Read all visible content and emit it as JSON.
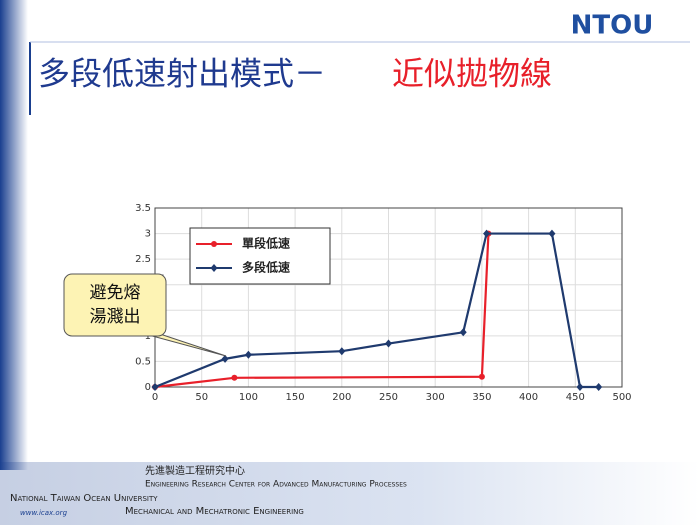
{
  "slide_title": {
    "part1": "多段低速射出模式－",
    "part2": "近似拋物線"
  },
  "logo": "NTOU",
  "chart_data": {
    "type": "line",
    "annotation": "避免熔 湯濺出",
    "xlim": [
      0,
      500
    ],
    "xticks": [
      0,
      50,
      100,
      150,
      200,
      250,
      300,
      350,
      400,
      450,
      500
    ],
    "ylim": [
      0,
      3.5
    ],
    "yticks": [
      0,
      0.5,
      1,
      1.5,
      2,
      2.5,
      3,
      3.5
    ],
    "grid": true,
    "legend": "upper left",
    "series": [
      {
        "name": "單段低速",
        "color": "#e8202a",
        "marker": "circle",
        "x": [
          0,
          85,
          350,
          357
        ],
        "values": [
          0,
          0.18,
          0.2,
          3
        ]
      },
      {
        "name": "多段低速",
        "color": "#1f3a6e",
        "marker": "diamond",
        "x": [
          0,
          75,
          100,
          200,
          250,
          330,
          355,
          425,
          455,
          475
        ],
        "values": [
          0,
          0.55,
          0.63,
          0.7,
          0.85,
          1.07,
          3,
          3,
          0,
          0
        ]
      }
    ]
  },
  "footer": {
    "center_zh": "先進製造工程研究中心",
    "center_en": "Engineering Research Center for Advanced Manufacturing Processes",
    "university": "National Taiwan Ocean University",
    "department": "Mechanical and Mechatronic Engineering",
    "url": "www.icax.org"
  }
}
